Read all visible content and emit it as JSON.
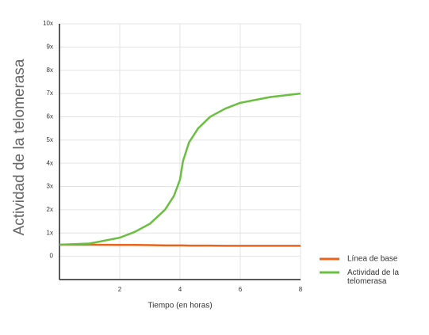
{
  "chart_data": {
    "type": "line",
    "x_label": "Tiempo (en horas)",
    "y_label": "Actividad de la telomerasa",
    "xlim": [
      0,
      8
    ],
    "xticks": [
      2,
      4,
      6,
      8
    ],
    "ylim": [
      -1,
      10
    ],
    "yticks": [
      0,
      {
        "value": 1,
        "label": "1x"
      },
      {
        "value": 2,
        "label": "2x"
      },
      {
        "value": 3,
        "label": "3x"
      },
      {
        "value": 4,
        "label": "4x"
      },
      {
        "value": 5,
        "label": "5x"
      },
      {
        "value": 6,
        "label": "6x"
      },
      {
        "value": 7,
        "label": "7x"
      },
      {
        "value": 8,
        "label": "8x"
      },
      {
        "value": 9,
        "label": "9x"
      },
      {
        "value": 10,
        "label": "10x"
      }
    ],
    "grid": true,
    "legend": "lower right outside",
    "x": [
      0,
      1,
      2,
      2.5,
      3,
      3.5,
      3.8,
      4,
      4.1,
      4.3,
      4.6,
      5,
      5.5,
      6,
      7,
      8
    ],
    "series": [
      {
        "name": "Línea de base",
        "color": "#e8631c",
        "values": [
          0.5,
          0.5,
          0.49,
          0.49,
          0.48,
          0.47,
          0.47,
          0.47,
          0.47,
          0.46,
          0.46,
          0.46,
          0.45,
          0.45,
          0.45,
          0.45
        ]
      },
      {
        "name": "Actividad de la telomerasa",
        "color": "#6abf40",
        "values": [
          0.5,
          0.55,
          0.8,
          1.05,
          1.4,
          2.0,
          2.6,
          3.3,
          4.1,
          4.9,
          5.5,
          6.0,
          6.35,
          6.6,
          6.85,
          7.0
        ]
      }
    ]
  }
}
